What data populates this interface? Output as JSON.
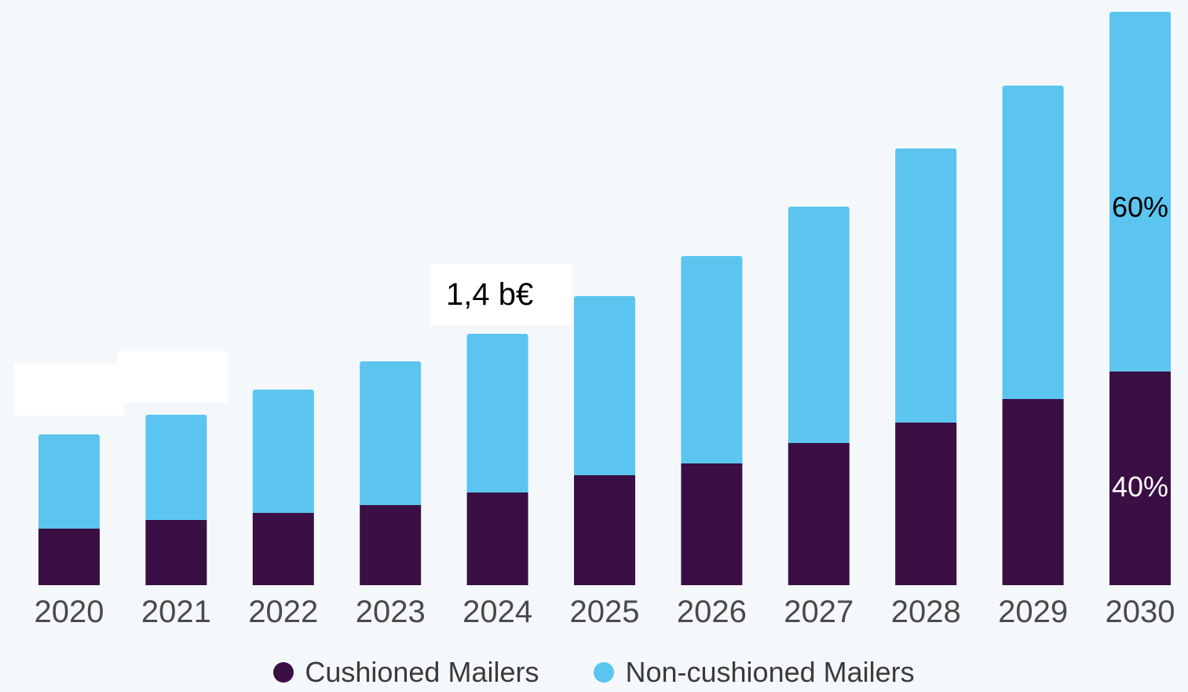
{
  "colors": {
    "cushioned": "#3a0f44",
    "non_cushioned": "#5bc5ef",
    "background": "#f4f8fb"
  },
  "annotations": {
    "callout": "1,4 b€",
    "top_share": "60%",
    "bottom_share": "40%"
  },
  "legend": {
    "cushioned_label": "Cushioned Mailers",
    "non_cushioned_label": "Non-cushioned Mailers"
  },
  "chart_data": {
    "type": "bar",
    "stacked": true,
    "categories": [
      "2020",
      "2021",
      "2022",
      "2023",
      "2024",
      "2025",
      "2026",
      "2027",
      "2028",
      "2029",
      "2030"
    ],
    "series": [
      {
        "name": "Cushioned Mailers",
        "values": [
          72,
          83,
          92,
          102,
          118,
          140,
          155,
          181,
          207,
          237,
          272
        ]
      },
      {
        "name": "Non-cushioned Mailers",
        "values": [
          120,
          134,
          157,
          183,
          202,
          228,
          264,
          301,
          349,
          399,
          458
        ]
      }
    ],
    "ylim": [
      0,
      730
    ],
    "grid": false,
    "legend_position": "bottom-center"
  }
}
